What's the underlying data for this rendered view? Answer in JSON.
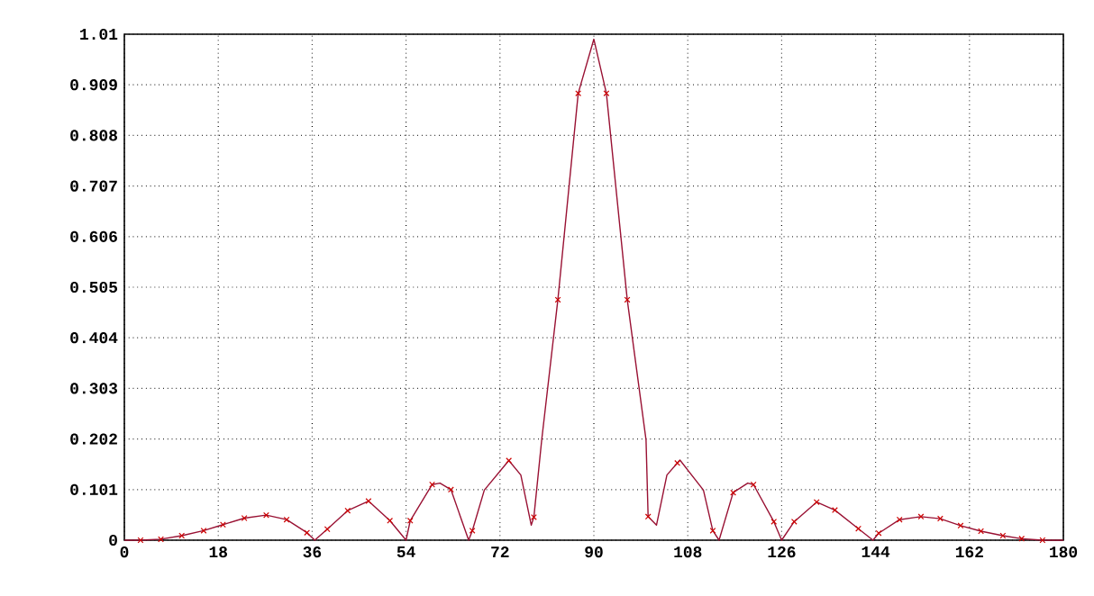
{
  "chart_data": {
    "type": "line",
    "xlim": [
      0,
      180
    ],
    "ylim": [
      0,
      1.01
    ],
    "xticks": [
      0,
      18,
      36,
      54,
      72,
      90,
      108,
      126,
      144,
      162,
      180
    ],
    "yticks": [
      0,
      0.101,
      0.202,
      0.303,
      0.404,
      0.505,
      0.606,
      0.707,
      0.808,
      0.909,
      1.01
    ],
    "grid": true,
    "line_style": "solid",
    "series": [
      {
        "color": "#991133",
        "x": [
          0,
          3.1,
          7,
          11,
          15.2,
          18.9,
          23,
          27.2,
          31.1,
          35,
          36.5,
          38.9,
          42.8,
          46.8,
          50.9,
          54,
          54.8,
          59,
          60.5,
          62.6,
          66,
          66.7,
          69,
          73.7,
          76,
          78,
          78.5,
          80,
          83.1,
          87,
          90,
          92.4,
          96.4,
          100,
          100.4,
          102,
          104,
          106.5,
          111,
          112.8,
          114,
          116.7,
          119.5,
          120.6,
          124.5,
          126,
          128.4,
          132.7,
          136.2,
          140.7,
          143.5,
          144.6,
          148.6,
          152.7,
          156.4,
          160.3,
          164.2,
          168.4,
          172,
          176,
          180
        ],
        "values": [
          0,
          0,
          0.002,
          0.009,
          0.019,
          0.031,
          0.044,
          0.05,
          0.041,
          0.015,
          0,
          0.022,
          0.059,
          0.078,
          0.039,
          0,
          0.039,
          0.111,
          0.114,
          0.101,
          0,
          0.019,
          0.1,
          0.159,
          0.13,
          0.03,
          0.046,
          0.2,
          0.48,
          0.892,
          1.0,
          0.892,
          0.48,
          0.2,
          0.047,
          0.03,
          0.13,
          0.16,
          0.1,
          0.019,
          0,
          0.095,
          0.114,
          0.111,
          0.037,
          0,
          0.037,
          0.076,
          0.06,
          0.023,
          0,
          0.014,
          0.041,
          0.047,
          0.043,
          0.029,
          0.018,
          0.009,
          0.003,
          0,
          0
        ]
      },
      {
        "type": "scatter",
        "marker": "cross",
        "color": "#cc0000",
        "x": [
          3.1,
          7,
          11,
          15.2,
          18.9,
          23,
          27.2,
          31.1,
          35,
          38.9,
          42.8,
          46.8,
          50.9,
          54.8,
          59,
          62.6,
          66.7,
          73.7,
          78.5,
          83.1,
          87,
          92.4,
          96.4,
          100.4,
          106,
          112.8,
          116.7,
          120.6,
          124.5,
          128.4,
          132.7,
          136.2,
          140.7,
          144.6,
          148.6,
          152.7,
          156.4,
          160.3,
          164.2,
          168.4,
          172,
          176
        ],
        "values": [
          0,
          0.002,
          0.009,
          0.019,
          0.031,
          0.044,
          0.05,
          0.041,
          0.015,
          0.022,
          0.059,
          0.078,
          0.039,
          0.039,
          0.111,
          0.101,
          0.019,
          0.159,
          0.046,
          0.48,
          0.892,
          0.892,
          0.48,
          0.047,
          0.154,
          0.019,
          0.095,
          0.111,
          0.037,
          0.037,
          0.076,
          0.06,
          0.023,
          0.014,
          0.041,
          0.047,
          0.043,
          0.029,
          0.018,
          0.009,
          0.003,
          0
        ]
      }
    ]
  }
}
